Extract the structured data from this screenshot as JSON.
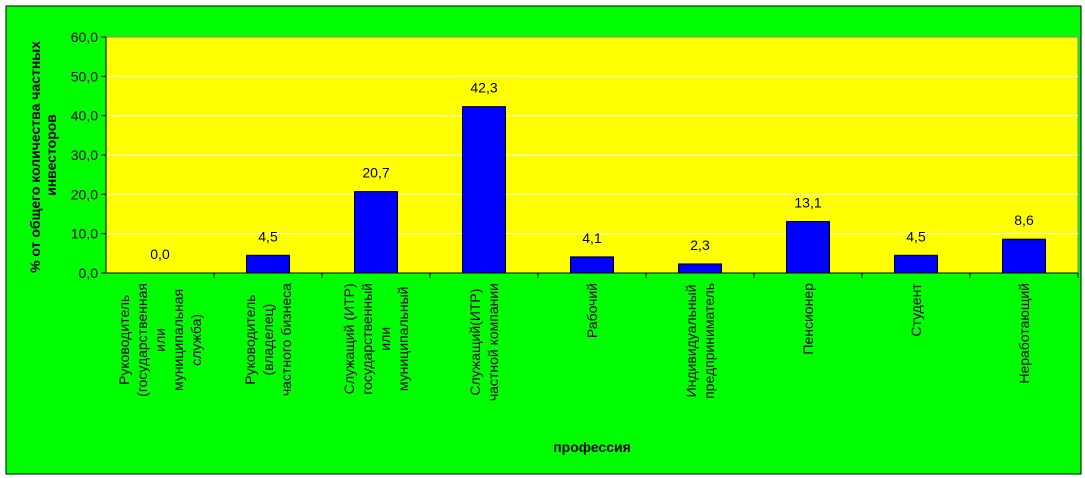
{
  "chart_data": {
    "type": "bar",
    "title": "",
    "xlabel": "профессия",
    "ylabel_lines": [
      "% от общего количества частных",
      "инвесторов"
    ],
    "ylim": [
      0,
      60
    ],
    "yticks": [
      "0,0",
      "10,0",
      "20,0",
      "30,0",
      "40,0",
      "50,0",
      "60,0"
    ],
    "grid": true,
    "legend": "none",
    "colors": {
      "background": "#00ff00",
      "plot_area": "#ffff00",
      "bar": "#0000ff",
      "grid": "#ffffff"
    },
    "categories": [
      [
        "Руководитель",
        "(государственная",
        "или",
        "муниципальная",
        "служба)"
      ],
      [
        "Руководитель",
        "(владелец)",
        "частного бизнеса"
      ],
      [
        "Служащий (ИТР)",
        "государственный",
        "или",
        "муниципальный"
      ],
      [
        "Служащий(ИТР)",
        "частной компании"
      ],
      [
        "Рабочий"
      ],
      [
        "Индивидуальный",
        "предприниматель"
      ],
      [
        "Пенсионер"
      ],
      [
        "Студент"
      ],
      [
        "Неработающий"
      ]
    ],
    "values": [
      0.0,
      4.5,
      20.7,
      42.3,
      4.1,
      2.3,
      13.1,
      4.5,
      8.6
    ],
    "value_labels": [
      "0,0",
      "4,5",
      "20,7",
      "42,3",
      "4,1",
      "2,3",
      "13,1",
      "4,5",
      "8,6"
    ]
  }
}
